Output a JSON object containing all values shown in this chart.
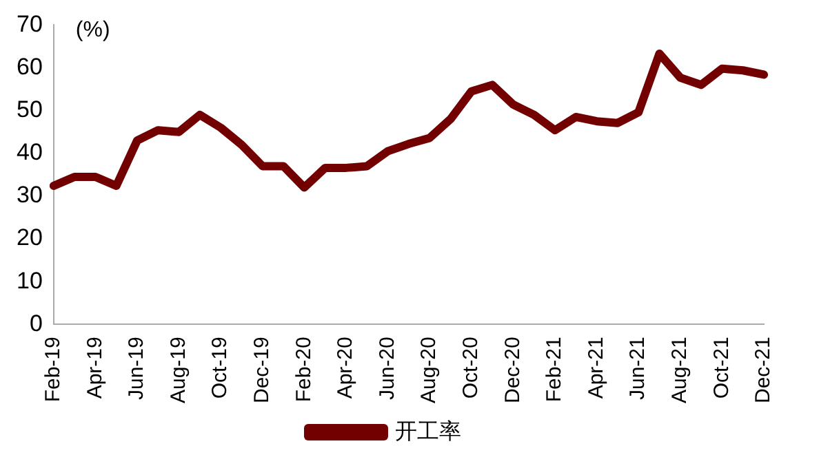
{
  "chart_data": {
    "type": "line",
    "ylabel": "(%)",
    "categories": [
      "Feb-19",
      null,
      "Apr-19",
      null,
      "Jun-19",
      null,
      "Aug-19",
      null,
      "Oct-19",
      null,
      "Dec-19",
      null,
      "Feb-20",
      null,
      "Apr-20",
      null,
      "Jun-20",
      null,
      "Aug-20",
      null,
      "Oct-20",
      null,
      "Dec-20",
      null,
      "Feb-21",
      null,
      "Apr-21",
      null,
      "Jun-21",
      null,
      "Aug-21",
      null,
      "Oct-21",
      null,
      "Dec-21"
    ],
    "series": [
      {
        "name": "开工率",
        "color": "#730000",
        "values": [
          32.4,
          34.5,
          34.5,
          32.4,
          43,
          45.4,
          45,
          49,
          46,
          42,
          37,
          37,
          32,
          36.6,
          36.6,
          37,
          40.5,
          42.2,
          43.6,
          48,
          54.5,
          56,
          51.4,
          49,
          45.4,
          48.5,
          47.5,
          47.1,
          49.6,
          63.3,
          57.7,
          56,
          59.8,
          59.4,
          58.4
        ]
      }
    ],
    "ylim": [
      0,
      70
    ],
    "yticks": [
      0,
      10,
      20,
      30,
      40,
      50,
      60,
      70
    ],
    "grid": false,
    "legend": "bottom",
    "marker": "none",
    "line_style": "solid"
  }
}
